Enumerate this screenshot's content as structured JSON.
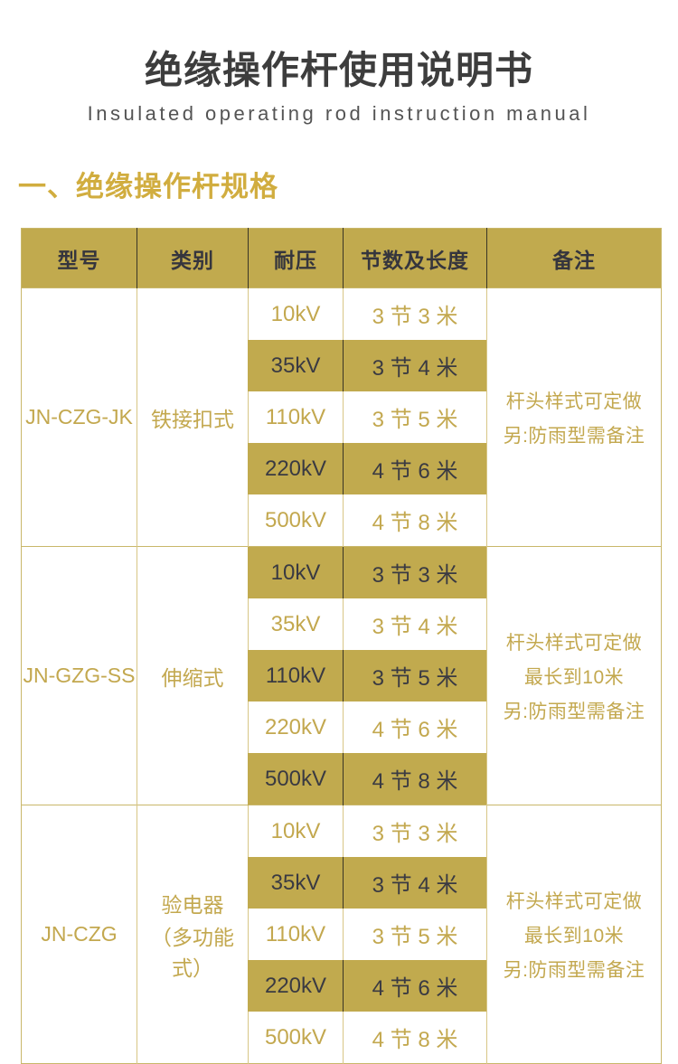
{
  "header": {
    "title": "绝缘操作杆使用说明书",
    "subtitle": "Insulated operating rod instruction manual"
  },
  "section": {
    "heading": "一、绝缘操作杆规格"
  },
  "colors": {
    "gold_fill": "#c1aa4e",
    "gold_text": "#c3a84f",
    "dark_text": "#35353d",
    "heading_gold": "#d1ad3f",
    "border_light": "#d8c685",
    "border_dark": "#3a3626"
  },
  "table": {
    "columns": [
      "型号",
      "类别",
      "耐压",
      "节数及长度",
      "备注"
    ],
    "groups": [
      {
        "model": "JN-CZG-JK",
        "category_lines": [
          "铁接扣式"
        ],
        "remark_lines": [
          "杆头样式可定做",
          "另:防雨型需备注"
        ],
        "rows": [
          {
            "voltage": "10kV",
            "length": "3 节 3 米",
            "highlighted": false
          },
          {
            "voltage": "35kV",
            "length": "3 节 4 米",
            "highlighted": true
          },
          {
            "voltage": "110kV",
            "length": "3 节 5 米",
            "highlighted": false
          },
          {
            "voltage": "220kV",
            "length": "4 节 6 米",
            "highlighted": true
          },
          {
            "voltage": "500kV",
            "length": "4 节 8 米",
            "highlighted": false
          }
        ]
      },
      {
        "model": "JN-GZG-SS",
        "category_lines": [
          "伸缩式"
        ],
        "remark_lines": [
          "杆头样式可定做",
          "最长到10米",
          "另:防雨型需备注"
        ],
        "rows": [
          {
            "voltage": "10kV",
            "length": "3 节 3 米",
            "highlighted": true
          },
          {
            "voltage": "35kV",
            "length": "3 节 4 米",
            "highlighted": false
          },
          {
            "voltage": "110kV",
            "length": "3 节 5 米",
            "highlighted": true
          },
          {
            "voltage": "220kV",
            "length": "4 节 6 米",
            "highlighted": false
          },
          {
            "voltage": "500kV",
            "length": "4 节 8 米",
            "highlighted": true
          }
        ]
      },
      {
        "model": "JN-CZG",
        "category_lines": [
          "验电器",
          "（多功能式）"
        ],
        "remark_lines": [
          "杆头样式可定做",
          "最长到10米",
          "另:防雨型需备注"
        ],
        "rows": [
          {
            "voltage": "10kV",
            "length": "3 节 3 米",
            "highlighted": false
          },
          {
            "voltage": "35kV",
            "length": "3 节 4 米",
            "highlighted": true
          },
          {
            "voltage": "110kV",
            "length": "3 节 5 米",
            "highlighted": false
          },
          {
            "voltage": "220kV",
            "length": "4 节 6 米",
            "highlighted": true
          },
          {
            "voltage": "500kV",
            "length": "4 节 8 米",
            "highlighted": false
          }
        ]
      }
    ]
  }
}
